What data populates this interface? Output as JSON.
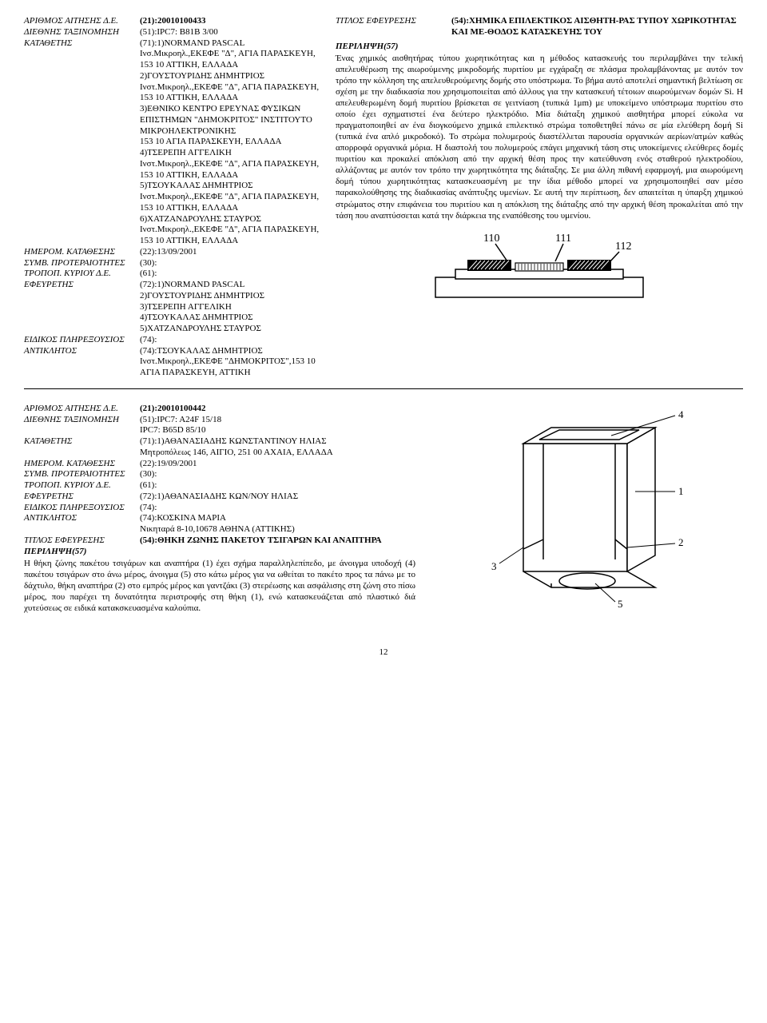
{
  "record1": {
    "left_fields": [
      {
        "label": "ΑΡΙΘΜΟΣ ΑΙΤΗΣΗΣ Δ.Ε.",
        "value": "(21):20010100433",
        "bold": true
      },
      {
        "label": "ΔΙΕΘΝΗΣ ΤΑΞΙΝΟΜΗΣΗ",
        "value": "(51):IPC7: B81B  3/00"
      },
      {
        "label": "ΚΑΤΑΘΕΤΗΣ",
        "value": "(71):1)NORMAND PASCAL\nΙνσ.Μικροηλ.,ΕΚΕΦΕ \"Δ\", ΑΓΙΑ ΠΑΡΑΣΚΕΥΗ, 153 10 ΑΤΤΙΚΗ, ΕΛΛΑΔΑ\n2)ΓΟΥΣΤΟΥΡΙΔΗΣ ΔΗΜΗΤΡΙΟΣ\nΙνστ.Μικροηλ.,ΕΚΕΦΕ \"Δ\", ΑΓΙΑ ΠΑΡΑΣΚΕΥΗ, 153 10 ΑΤΤΙΚΗ, ΕΛΛΑΔΑ\n3)ΕΘΝΙΚΟ ΚΕΝΤΡΟ ΕΡΕΥΝΑΣ ΦΥΣΙΚΩΝ ΕΠΙΣΤΗΜΩΝ \"ΔΗΜΟΚΡΙΤΟΣ\" ΙΝΣΤΙΤΟΥΤΟ ΜΙΚΡΟΗΛΕΚΤΡΟΝΙΚΗΣ\n 153 10 ΑΓΙΑ ΠΑΡΑΣΚΕΥΗ, ΕΛΛΑΔΑ\n4)ΤΣΕΡΕΠΗ ΑΓΓΕΛΙΚΗ\nΙνστ.Μικροηλ.,ΕΚΕΦΕ \"Δ\", ΑΓΙΑ ΠΑΡΑΣΚΕΥΗ, 153 10 ΑΤΤΙΚΗ, ΕΛΛΑΔΑ\n5)ΤΣΟΥΚΑΛΑΣ ΔΗΜΗΤΡΙΟΣ\nΙνστ.Μικροηλ.,ΕΚΕΦΕ \"Δ\", ΑΓΙΑ ΠΑΡΑΣΚΕΥΗ, 153 10 ΑΤΤΙΚΗ, ΕΛΛΑΔΑ\n6)ΧΑΤΖΑΝΔΡΟΥΛΗΣ ΣΤΑΥΡΟΣ\nΙνστ.Μικροηλ.,ΕΚΕΦΕ \"Δ\", ΑΓΙΑ ΠΑΡΑΣΚΕΥΗ, 153 10 ΑΤΤΙΚΗ, ΕΛΛΑΔΑ"
      },
      {
        "label": "ΗΜΕΡΟΜ. ΚΑΤΑΘΕΣΗΣ",
        "value": "(22):13/09/2001"
      },
      {
        "label": "ΣΥΜΒ. ΠΡΟΤΕΡΑΙΟΤΗΤΕΣ",
        "value": "(30):"
      },
      {
        "label": "ΤΡΟΠΟΠ. ΚΥΡΙΟΥ Δ.Ε.",
        "value": "(61):"
      },
      {
        "label": "ΕΦΕΥΡΕΤΗΣ",
        "value": "(72):1)NORMAND PASCAL\n2)ΓΟΥΣΤΟΥΡΙΔΗΣ ΔΗΜΗΤΡΙΟΣ\n3)ΤΣΕΡΕΠΗ ΑΓΓΕΛΙΚΗ\n4)ΤΣΟΥΚΑΛΑΣ ΔΗΜΗΤΡΙΟΣ\n5)ΧΑΤΖΑΝΔΡΟΥΛΗΣ ΣΤΑΥΡΟΣ"
      },
      {
        "label": "ΕΙΔΙΚΟΣ ΠΛΗΡΕΞΟΥΣΙΟΣ",
        "value": "(74):"
      },
      {
        "label": "ΑΝΤΙΚΛΗΤΟΣ",
        "value": "(74):ΤΣΟΥΚΑΛΑΣ ΔΗΜΗΤΡΙΟΣ\nΙνστ.Μικροηλ.,ΕΚΕΦΕ \"ΔΗΜΟΚΡΙΤΟΣ\",153 10 ΑΓΙΑ ΠΑΡΑΣΚΕΥΗ, ΑΤΤΙΚΗ"
      }
    ],
    "title_label": "ΤΙΤΛΟΣ ΕΦΕΥΡΕΣΗΣ",
    "title_value": "(54):ΧΗΜΙΚΑ ΕΠΙΛΕΚΤΙΚΟΣ ΑΙΣΘΗΤΗ-ΡΑΣ ΤΥΠΟΥ ΧΩΡΙΚΟΤΗΤΑΣ ΚΑΙ ΜΕ-ΘΟΔΟΣ ΚΑΤΑΣΚΕΥΗΣ ΤΟΥ",
    "abstract_label": "ΠΕΡΙΛΗΨΗ(57)",
    "abstract": "Ένας χημικός αισθητήρας τύπου χωρητικότητας και η μέθοδος κατασκευής του περιλαμβάνει την τελική απελευθέρωση της αιωρούμενης μικροδομής πυριτίου με εγχάραξη σε πλάσμα προλαμβάνοντας με αυτόν τον τρόπο την κόλληση της απελευθερούμενης δομής στο υπόστρωμα. Το βήμα αυτό αποτελεί σημαντική βελτίωση σε σχέση με την διαδικασία που χρησιμοποιείται από άλλους για την κατασκευή τέτοιων αιωρούμενων δομών Si. Η απελευθερωμένη δομή πυριτίου βρίσκεται σε γειτνίαση (τυπικά 1μm) με υποκείμενο υπόστρωμα πυριτίου στο οποίο έχει σχηματιστεί ένα δεύτερο ηλεκτρόδιο. Μία διάταξη χημικού αισθητήρα μπορεί εύκολα να πραγματοποιηθεί αν ένα διογκούμενο χημικά επιλεκτικό στρώμα τοποθετηθεί πάνω σε μία ελεύθερη δομή Si (τυπικά ένα απλό μικροδοκό). Το στρώμα πολυμερούς διαστέλλεται παρουσία οργανικών αερίων/ατμών καθώς απορροφά οργανικά μόρια. Η διαστολή του πολυμερούς επάγει μηχανική τάση στις υποκείμενες ελεύθερες δομές πυριτίου και προκαλεί απόκλιση από την αρχική θέση προς την κατεύθυνση ενός σταθερού ηλεκτροδίου, αλλάζοντας με αυτόν τον τρόπο την χωρητικότητα της διάταξης. Σε μια άλλη πιθανή εφαρμογή, μια αιωρούμενη δομή τύπου χωρητικότητας κατασκευασμένη με την ίδια μέθοδο μπορεί να χρησιμοποιηθεί σαν μέσο παρακολούθησης της διαδικασίας ανάπτυξης υμενίων. Σε αυτή την περίπτωση, δεν απαιτείται η ύπαρξη χημικού στρώματος στην επιφάνεια του πυριτίου και η απόκλιση της διάταξης από την αρχική θέση προκαλείται από την τάση που αναπτύσσεται κατά την διάρκεια της εναπόθεσης του υμενίου.",
    "fig_labels": [
      "110",
      "111",
      "112"
    ]
  },
  "record2": {
    "fields": [
      {
        "label": "ΑΡΙΘΜΟΣ ΑΙΤΗΣΗΣ Δ.Ε.",
        "value": "(21):20010100442",
        "bold": true
      },
      {
        "label": "ΔΙΕΘΝΗΣ ΤΑΞΙΝΟΜΗΣΗ",
        "value": "(51):IPC7: A24F 15/18\nIPC7: B65D 85/10"
      },
      {
        "label": "ΚΑΤΑΘΕΤΗΣ",
        "value": "(71):1)ΑΘΑΝΑΣΙΑΔΗΣ ΚΩΝΣΤΑΝΤΙΝΟΥ ΗΛΙΑΣ\nΜητροπόλεως 146, ΑΙΓΙΟ, 251 00 ΑΧΑΙΑ, ΕΛΛΑΔΑ"
      },
      {
        "label": "ΗΜΕΡΟΜ. ΚΑΤΑΘΕΣΗΣ",
        "value": "(22):19/09/2001"
      },
      {
        "label": "ΣΥΜΒ. ΠΡΟΤΕΡΑΙΟΤΗΤΕΣ",
        "value": "(30):"
      },
      {
        "label": "ΤΡΟΠΟΠ. ΚΥΡΙΟΥ Δ.Ε.",
        "value": "(61):"
      },
      {
        "label": "ΕΦΕΥΡΕΤΗΣ",
        "value": "(72):1)ΑΘΑΝΑΣΙΑΔΗΣ ΚΩΝ/ΝΟΥ ΗΛΙΑΣ"
      },
      {
        "label": "ΕΙΔΙΚΟΣ ΠΛΗΡΕΞΟΥΣΙΟΣ",
        "value": "(74):"
      },
      {
        "label": "ΑΝΤΙΚΛΗΤΟΣ",
        "value": "(74):ΚΟΣΚΙΝΑ ΜΑΡΙΑ\nΝικηταρά 8-10,10678 ΑΘΗΝΑ (ΑΤΤΙΚΗΣ)"
      },
      {
        "label": "ΤΙΤΛΟΣ ΕΦΕΥΡΕΣΗΣ",
        "value": "(54):ΘΗΚΗ ΖΩΝΗΣ ΠΑΚΕΤΟΥ ΤΣΙΓΑΡΩΝ ΚΑΙ ΑΝΑΠΤΗΡΑ",
        "bold": true
      }
    ],
    "abstract_label": "ΠΕΡΙΛΗΨΗ(57)",
    "abstract": "Η θήκη ζώνης πακέτου τσιγάρων και αναπτήρα (1) έχει σχήμα παραλληλεπίπεδο, με άνοιγμα υποδοχή (4) πακέτου τσιγάρων στο άνω μέρος, άνοιγμα (5) στο κάτω μέρος για να ωθείται το πακέτο προς τα πάνω με το δάχτυλο, θήκη αναπτήρα (2) στο εμπρός μέρος και γαντζάκι (3) στερέωσης και ασφάλισης στη ζώνη στο πίσω μέρος, που παρέχει τη δυνατότητα περιστροφής στη θήκη (1), ενώ κατασκευάζεται από πλαστικό διά χυτεύσεως σε ειδικά κατακσκευασμένα καλούπια.",
    "fig_labels": [
      "4",
      "1",
      "2",
      "3",
      "5"
    ]
  },
  "page_number": "12"
}
